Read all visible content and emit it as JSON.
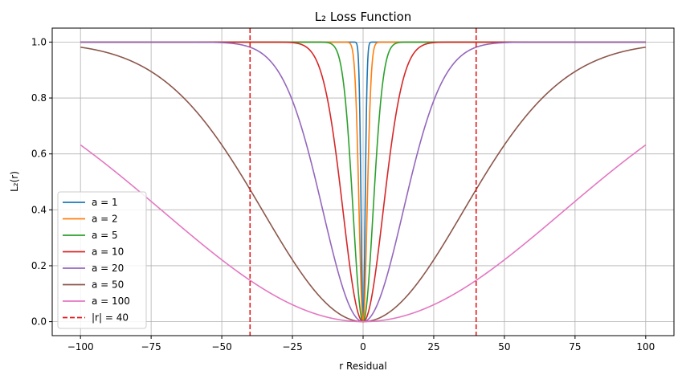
{
  "chart_data": {
    "type": "line",
    "title": "L₂ Loss Function",
    "xlabel": "r Residual",
    "ylabel": "L₂(r)",
    "xlim": [
      -110,
      110
    ],
    "ylim": [
      -0.05,
      1.05
    ],
    "x_ticks": [
      -100,
      -75,
      -50,
      -25,
      0,
      25,
      50,
      75,
      100
    ],
    "x_tick_labels": [
      "−100",
      "−75",
      "−50",
      "−25",
      "0",
      "25",
      "50",
      "75",
      "100"
    ],
    "y_ticks": [
      0.0,
      0.2,
      0.4,
      0.6,
      0.8,
      1.0
    ],
    "y_tick_labels": [
      "0.0",
      "0.2",
      "0.4",
      "0.6",
      "0.8",
      "1.0"
    ],
    "x_range": [
      -100,
      100
    ],
    "formula": "1 - exp(-r^2 / a^2)",
    "series": [
      {
        "name": "a = 1",
        "a": 1,
        "color": "#1f77b4"
      },
      {
        "name": "a = 2",
        "a": 2,
        "color": "#ff7f0e"
      },
      {
        "name": "a = 5",
        "a": 5,
        "color": "#2ca02c"
      },
      {
        "name": "a = 10",
        "a": 10,
        "color": "#d62728"
      },
      {
        "name": "a = 20",
        "a": 20,
        "color": "#9467bd"
      },
      {
        "name": "a = 50",
        "a": 50,
        "color": "#8c564b"
      },
      {
        "name": "a = 100",
        "a": 100,
        "color": "#e377c2"
      }
    ],
    "reference_lines": [
      {
        "name": "|r| = 40",
        "x": [
          -40,
          40
        ],
        "color": "#e41a1c",
        "style": "dashed"
      }
    ],
    "grid": true,
    "legend_position": "lower-left"
  }
}
